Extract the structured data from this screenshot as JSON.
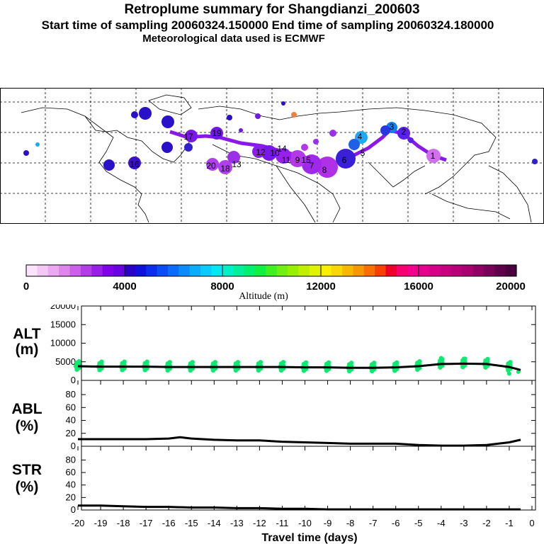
{
  "header": {
    "title": "Retroplume summary for Shangdianzi_200603",
    "sampling": "Start time of sampling 20060324.150000     End time of sampling 20060324.180000",
    "met": "Meteorological data used is ECMWF"
  },
  "colorbar": {
    "label": "Altitude (m)",
    "ticks": [
      "0",
      "4000",
      "8000",
      "12000",
      "16000",
      "20000"
    ],
    "colors": [
      "#fbe3fb",
      "#f4c8f4",
      "#eca8f0",
      "#de86ec",
      "#cc60ea",
      "#b43ce8",
      "#9a1ee8",
      "#8000ea",
      "#6a00e4",
      "#2a00c8",
      "#1010dc",
      "#0c2cee",
      "#0a4cf6",
      "#0a6cfa",
      "#0a8cfc",
      "#0aacfc",
      "#0accfc",
      "#00e8f4",
      "#00f0c8",
      "#00f09c",
      "#00f070",
      "#10f040",
      "#40f020",
      "#70f010",
      "#98f000",
      "#c0f000",
      "#e0f400",
      "#f8f000",
      "#f8d800",
      "#f8b800",
      "#f89800",
      "#f87000",
      "#f84000",
      "#f00028",
      "#f80070",
      "#f4008c",
      "#e8008c",
      "#d80088",
      "#c80080",
      "#b80078",
      "#a80070",
      "#900064",
      "#780058",
      "#60004a",
      "#4a003c"
    ]
  },
  "map": {
    "labels": [
      "1",
      "2",
      "3",
      "4",
      "5",
      "6",
      "7",
      "8",
      "9",
      "10",
      "11",
      "12",
      "13",
      "14",
      "15",
      "16",
      "17",
      "18",
      "19",
      "20"
    ]
  },
  "chart_data": [
    {
      "type": "line",
      "name": "ALT",
      "ylabel_line1": "ALT",
      "ylabel_line2": "(m)",
      "ylim": [
        0,
        20000
      ],
      "yticks": [
        "0",
        "5000",
        "10000",
        "15000",
        "20000"
      ],
      "x": [
        -20,
        -19,
        -18,
        -17,
        -16,
        -15,
        -14,
        -13,
        -12,
        -11,
        -10,
        -9,
        -8,
        -7,
        -6,
        -5,
        -4,
        -3,
        -2,
        -1,
        -0.5
      ],
      "values": [
        3800,
        3700,
        3700,
        3700,
        3600,
        3600,
        3600,
        3600,
        3600,
        3600,
        3500,
        3500,
        3400,
        3400,
        3500,
        3800,
        4400,
        4500,
        4400,
        3600,
        2800
      ],
      "scatter_color": "#10e870"
    },
    {
      "type": "line",
      "name": "ABL",
      "ylabel_line1": "ABL",
      "ylabel_line2": "(%)",
      "ylim": [
        0,
        100
      ],
      "yticks": [
        "0",
        "20",
        "40",
        "60",
        "80"
      ],
      "x": [
        -20,
        -19,
        -18,
        -17,
        -16,
        -15.5,
        -15,
        -14,
        -13,
        -12,
        -11,
        -10,
        -9,
        -8,
        -7,
        -6,
        -5,
        -4,
        -3,
        -2,
        -1,
        -0.5
      ],
      "values": [
        11,
        11,
        11,
        11,
        12,
        14,
        12,
        10,
        9,
        9,
        7,
        6,
        5,
        4,
        4,
        4,
        2,
        1,
        1,
        2,
        6,
        10
      ]
    },
    {
      "type": "line",
      "name": "STR",
      "ylabel_line1": "STR",
      "ylabel_line2": "(%)",
      "ylim": [
        0,
        100
      ],
      "yticks": [
        "0",
        "20",
        "40",
        "60",
        "80"
      ],
      "x": [
        -20,
        -19,
        -18,
        -17,
        -16,
        -15,
        -14,
        -13,
        -12,
        -11,
        -10,
        -9,
        -8,
        -7,
        -6,
        -5,
        -4,
        -3,
        -2,
        -1,
        -0.5
      ],
      "values": [
        7,
        7,
        6,
        5,
        5,
        4,
        4,
        3,
        3,
        2,
        2,
        1,
        1,
        1,
        1,
        1,
        1,
        1,
        1,
        1,
        1
      ],
      "xlabel": "Travel time (days)",
      "xticks": [
        "-20",
        "-19",
        "-18",
        "-17",
        "-16",
        "-15",
        "-14",
        "-13",
        "-12",
        "-11",
        "-10",
        "-9",
        "-8",
        "-7",
        "-6",
        "-5",
        "-4",
        "-3",
        "-2",
        "-1",
        "0"
      ]
    }
  ]
}
